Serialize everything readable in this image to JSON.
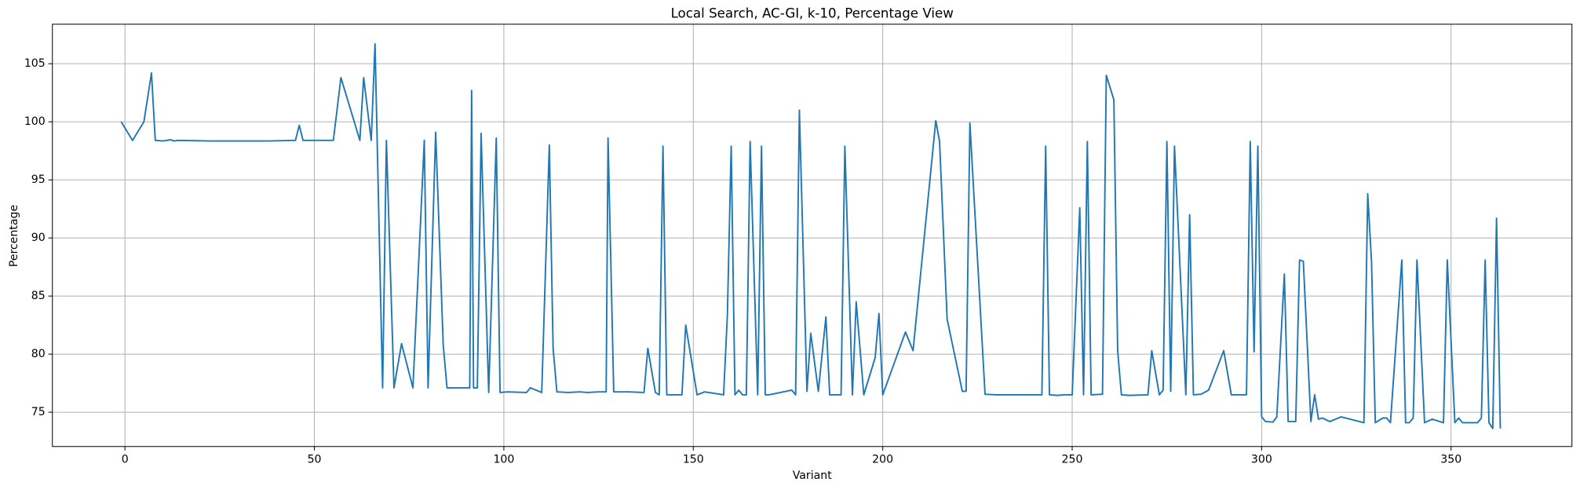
{
  "chart_data": {
    "type": "line",
    "title": "Local Search, AC-GI, k-10, Percentage View",
    "x_label": "Variant",
    "y_label": "Percentage",
    "x": [
      -1,
      2,
      5,
      7,
      8,
      10,
      12,
      13,
      14,
      22,
      38,
      45,
      46,
      47,
      55,
      57,
      62,
      63,
      65,
      66,
      68,
      69,
      71,
      73,
      76,
      79,
      80,
      82,
      84,
      85,
      91,
      91.5,
      92,
      93,
      94,
      96,
      98,
      99,
      101,
      106,
      107,
      110,
      112,
      113,
      114,
      117,
      120,
      122,
      125,
      127,
      127.5,
      129,
      133,
      137,
      138,
      140,
      141,
      142,
      143,
      147,
      148,
      151,
      153,
      158,
      159,
      160,
      161,
      162,
      163,
      164,
      165,
      167,
      168,
      169,
      170,
      176,
      177,
      178,
      180,
      181,
      183,
      185,
      186,
      189,
      190,
      192,
      193,
      195,
      198,
      199,
      200,
      206,
      208,
      214,
      215,
      217,
      221,
      222,
      223,
      227,
      230,
      242,
      243,
      244,
      246,
      248,
      250,
      252,
      253,
      254,
      255,
      258,
      259,
      261,
      262,
      263,
      265,
      270,
      271,
      273,
      274,
      275,
      276,
      277,
      280,
      281,
      282,
      284,
      286,
      290,
      292,
      296,
      297,
      298,
      299,
      300,
      301,
      303,
      304,
      306,
      307,
      309,
      310,
      311,
      313,
      314,
      315,
      316,
      318,
      321,
      327,
      328,
      329,
      330,
      332,
      333,
      334,
      337,
      338,
      339,
      340,
      341,
      343,
      345,
      348,
      349,
      351,
      352,
      353,
      357,
      358,
      359,
      360,
      361,
      362,
      363
    ],
    "series": [
      {
        "color": "#1f77b4",
        "values": [
          100,
          98.4,
          100,
          104.2,
          98.4,
          98.35,
          98.45,
          98.35,
          98.4,
          98.35,
          98.35,
          98.4,
          99.7,
          98.4,
          98.4,
          103.8,
          98.4,
          103.8,
          98.4,
          106.7,
          77.1,
          98.4,
          77.1,
          80.9,
          77.1,
          98.4,
          77.1,
          99.1,
          80.8,
          77.1,
          77.1,
          102.7,
          77.1,
          77.1,
          99.0,
          76.7,
          98.6,
          76.7,
          76.75,
          76.7,
          77.1,
          76.7,
          98.0,
          80.5,
          76.75,
          76.7,
          76.75,
          76.7,
          76.75,
          76.75,
          98.6,
          76.75,
          76.75,
          76.7,
          80.5,
          76.7,
          76.5,
          97.9,
          76.5,
          76.5,
          82.5,
          76.5,
          76.75,
          76.5,
          83.4,
          97.9,
          76.5,
          76.9,
          76.5,
          76.5,
          98.3,
          76.5,
          97.9,
          76.5,
          76.5,
          76.9,
          76.5,
          101.0,
          76.8,
          81.8,
          76.8,
          83.2,
          76.5,
          76.5,
          97.9,
          76.5,
          84.5,
          76.5,
          79.7,
          83.5,
          76.5,
          81.9,
          80.3,
          100.1,
          98.3,
          83.0,
          76.8,
          76.8,
          99.9,
          76.55,
          76.5,
          76.5,
          97.9,
          76.5,
          76.45,
          76.5,
          76.5,
          92.6,
          76.5,
          98.3,
          76.5,
          76.55,
          104.0,
          101.9,
          80.3,
          76.5,
          76.45,
          76.5,
          80.3,
          76.5,
          76.9,
          98.3,
          76.8,
          97.9,
          76.5,
          92.0,
          76.5,
          76.55,
          76.9,
          80.3,
          76.5,
          76.5,
          98.3,
          80.2,
          97.9,
          74.6,
          74.2,
          74.15,
          74.6,
          86.9,
          74.2,
          74.2,
          88.1,
          88.0,
          74.2,
          76.5,
          74.4,
          74.5,
          74.2,
          74.6,
          74.1,
          93.8,
          88.0,
          74.1,
          74.5,
          74.5,
          74.1,
          88.1,
          74.1,
          74.1,
          74.5,
          88.1,
          74.1,
          74.4,
          74.1,
          88.1,
          74.1,
          74.5,
          74.1,
          74.1,
          74.5,
          88.1,
          74.1,
          73.6,
          91.7,
          73.6
        ]
      }
    ],
    "xlim": [
      -19.15,
      381.9
    ],
    "ylim": [
      72.05,
      108.4
    ],
    "xticks": [
      0,
      50,
      100,
      150,
      200,
      250,
      300,
      350
    ],
    "yticks": [
      75,
      80,
      85,
      90,
      95,
      100,
      105
    ],
    "grid": true
  }
}
